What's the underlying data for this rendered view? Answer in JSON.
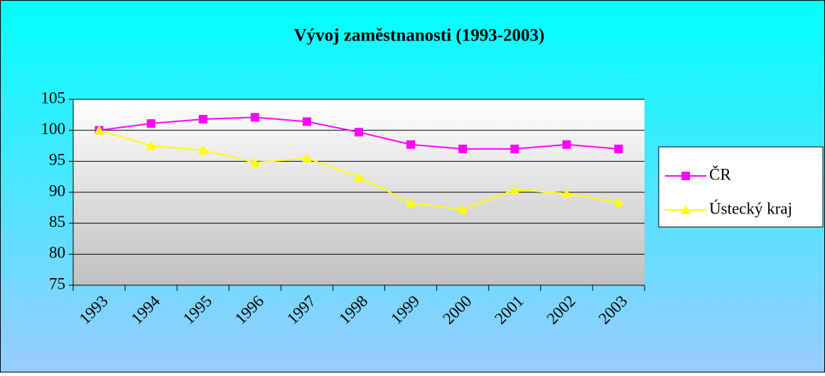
{
  "chart_data": {
    "type": "line",
    "title": "Vývoj zaměstnanosti (1993-2003)",
    "categories": [
      "1993",
      "1994",
      "1995",
      "1996",
      "1997",
      "1998",
      "1999",
      "2000",
      "2001",
      "2002",
      "2003"
    ],
    "series": [
      {
        "name": "ČR",
        "color": "#ff00ff",
        "marker": "square",
        "values": [
          100,
          101.1,
          101.8,
          102.1,
          101.4,
          99.7,
          97.7,
          97.0,
          97.0,
          97.7,
          97.0
        ]
      },
      {
        "name": "Ústecký kraj",
        "color": "#ffff00",
        "marker": "triangle",
        "values": [
          100,
          97.5,
          96.8,
          94.8,
          95.5,
          92.5,
          88.3,
          87.2,
          90.4,
          89.8,
          88.4
        ]
      }
    ],
    "ylim": [
      75,
      105
    ],
    "yticks": [
      75,
      80,
      85,
      90,
      95,
      100,
      105
    ],
    "grid": true,
    "legend": "right"
  }
}
